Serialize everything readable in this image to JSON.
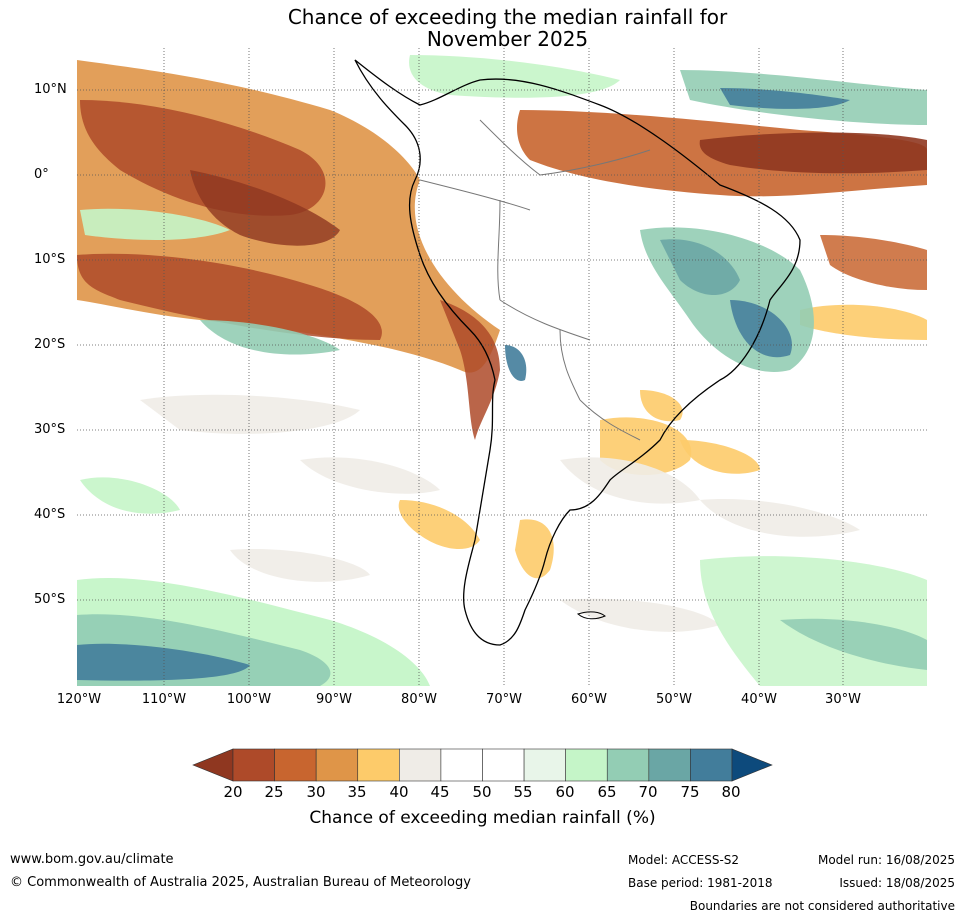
{
  "title_line1": "Chance of exceeding the median rainfall for",
  "title_line2": "November 2025",
  "lat_labels": [
    "10°N",
    "0°",
    "10°S",
    "20°S",
    "30°S",
    "40°S",
    "50°S"
  ],
  "lon_labels": [
    "120°W",
    "110°W",
    "100°W",
    "90°W",
    "80°W",
    "70°W",
    "60°W",
    "50°W",
    "40°W",
    "30°W"
  ],
  "colorbar": {
    "ticks": [
      "20",
      "25",
      "30",
      "35",
      "40",
      "45",
      "50",
      "55",
      "60",
      "65",
      "70",
      "75",
      "80"
    ],
    "colors": [
      "#8f3720",
      "#ae4a29",
      "#c8652f",
      "#df9548",
      "#fdcb6a",
      "#efece7",
      "#ffffff",
      "#ffffff",
      "#e8f5e9",
      "#c5f5c8",
      "#93cdb4",
      "#6aa6a5",
      "#427d9b",
      "#0d4a7c"
    ],
    "label": "Chance of exceeding median rainfall (%)"
  },
  "footer": {
    "url": "www.bom.gov.au/climate",
    "copyright": "© Commonwealth of Australia 2025, Australian Bureau of Meteorology",
    "model": "Model: ACCESS-S2",
    "base_period": "Base period: 1981-2018",
    "model_run": "Model run: 16/08/2025",
    "issued": "Issued: 18/08/2025",
    "disclaimer": "Boundaries are not considered authoritative"
  }
}
